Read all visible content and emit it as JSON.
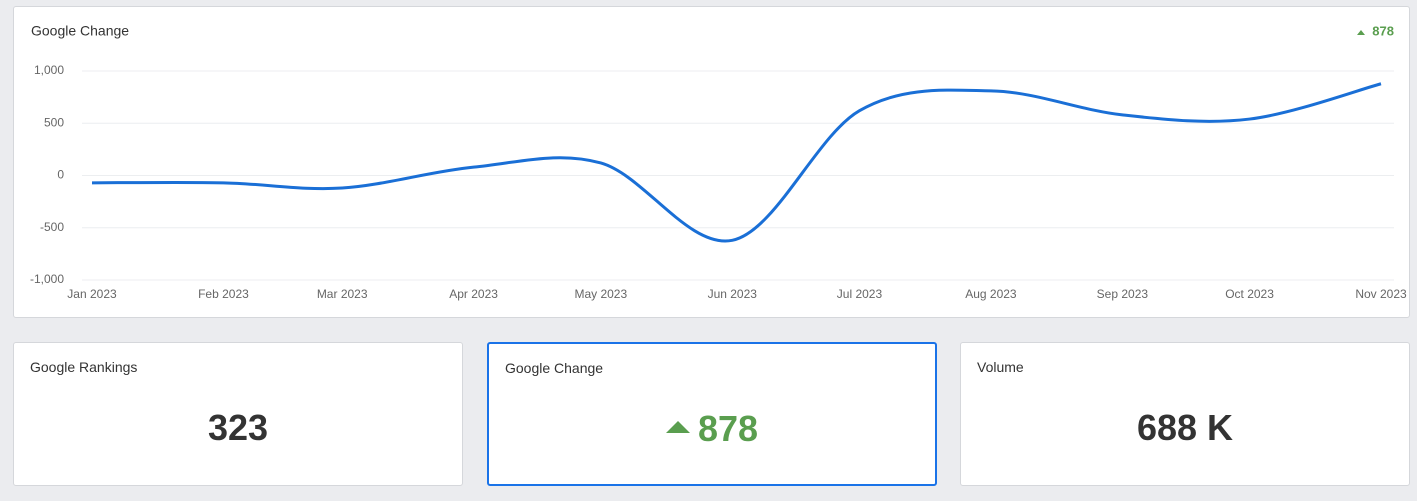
{
  "chart_data": {
    "type": "line",
    "title": "Google Change",
    "change": 878,
    "categories": [
      "Jan 2023",
      "Feb 2023",
      "Mar 2023",
      "Apr 2023",
      "May 2023",
      "Jun 2023",
      "Jul 2023",
      "Aug 2023",
      "Sep 2023",
      "Oct 2023",
      "Nov 2023"
    ],
    "series": [
      {
        "name": "Google Change",
        "color": "#1a6fd6",
        "values": [
          -70,
          -70,
          -120,
          80,
          120,
          -620,
          620,
          810,
          580,
          540,
          878
        ]
      }
    ],
    "ylim": [
      -1000,
      1000
    ],
    "yticks": [
      {
        "value": -1000,
        "label": "-1,000"
      },
      -500,
      0,
      500,
      {
        "value": 1000,
        "label": "1,000"
      }
    ],
    "grid": true
  },
  "cards": [
    {
      "title": "Google Rankings",
      "value": "323"
    },
    {
      "title": "Google Change",
      "value": "878"
    },
    {
      "title": "Volume",
      "value": "688 K"
    }
  ]
}
